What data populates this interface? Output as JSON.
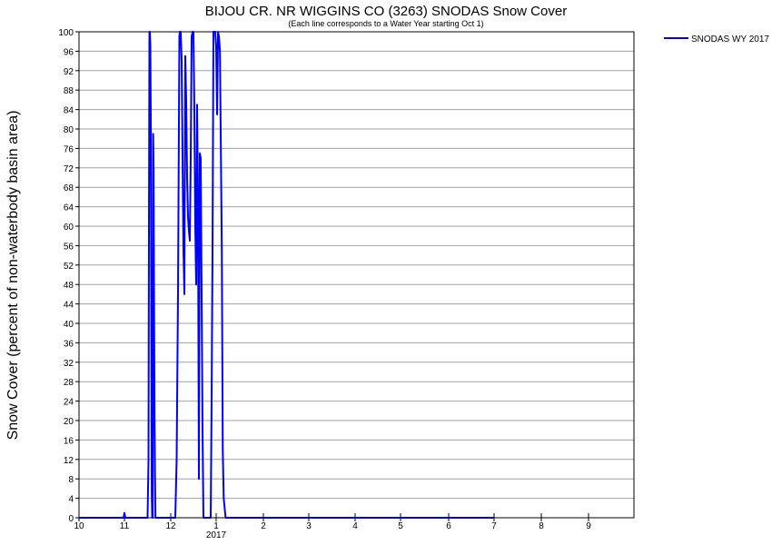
{
  "chart_data": {
    "type": "line",
    "title": "BIJOU CR. NR WIGGINS CO (3263) SNODAS Snow Cover",
    "subtitle": "(Each line corresponds to a Water Year starting Oct 1)",
    "ylabel": "Snow Cover (percent of non-waterbody basin area)",
    "xlabel": "",
    "x_tick_labels": [
      "10",
      "11",
      "12",
      "1",
      "2",
      "3",
      "4",
      "5",
      "6",
      "7",
      "8",
      "9"
    ],
    "x_year_label": "2017",
    "y_tick_labels": [
      "0",
      "4",
      "8",
      "12",
      "16",
      "20",
      "24",
      "28",
      "32",
      "36",
      "40",
      "44",
      "48",
      "52",
      "56",
      "60",
      "64",
      "68",
      "72",
      "76",
      "80",
      "84",
      "88",
      "92",
      "96",
      "100"
    ],
    "ylim": [
      0,
      100
    ],
    "xlim_months": [
      0,
      12
    ],
    "grid": true,
    "legend_position": "top-right",
    "series": [
      {
        "name": "SNODAS WY 2017",
        "color": "#0000ff",
        "x_months_from_oct1": [
          0,
          0.98,
          1.0,
          1.02,
          1.5,
          1.52,
          1.53,
          1.54,
          1.55,
          1.56,
          1.57,
          1.58,
          1.59,
          1.6,
          1.61,
          1.62,
          1.63,
          1.64,
          1.65,
          1.66,
          1.67,
          1.68,
          1.69,
          1.7,
          1.72,
          1.74,
          1.76,
          2.1,
          2.13,
          2.16,
          2.19,
          2.2,
          2.22,
          2.24,
          2.26,
          2.28,
          2.3,
          2.32,
          2.34,
          2.36,
          2.38,
          2.4,
          2.42,
          2.44,
          2.46,
          2.48,
          2.5,
          2.52,
          2.54,
          2.56,
          2.58,
          2.6,
          2.62,
          2.64,
          2.66,
          2.68,
          2.7,
          2.72,
          2.74,
          2.76,
          2.78,
          2.8,
          2.82,
          2.84,
          2.86,
          2.88,
          2.9,
          2.92,
          2.94,
          2.96,
          2.98,
          3.0,
          3.02,
          3.04,
          3.06,
          3.08,
          3.12,
          3.14,
          3.16,
          3.18,
          3.2,
          3.22,
          3.24,
          3.26,
          3.28,
          3.32,
          3.34,
          3.36,
          3.38,
          3.4,
          3.42,
          3.44,
          3.46,
          3.48,
          3.5,
          3.52,
          3.54,
          3.56,
          3.58,
          3.6,
          3.62,
          3.64,
          3.66,
          3.68,
          3.7,
          3.72,
          3.74,
          3.76,
          3.78,
          3.8,
          3.84,
          3.9,
          3.96,
          4.0,
          4.02,
          4.04,
          4.06,
          4.08,
          4.1,
          4.12,
          4.14,
          4.16,
          4.2,
          4.24,
          4.3,
          4.32,
          4.34,
          4.36,
          4.38,
          4.4,
          4.44,
          4.5,
          4.8,
          4.9,
          5.0,
          5.02,
          5.04,
          5.06,
          5.08,
          5.1,
          5.12,
          5.14,
          5.16,
          5.2,
          5.4,
          5.7,
          5.74,
          5.76,
          5.78,
          5.8,
          5.82,
          5.84,
          5.86,
          5.88,
          5.9,
          5.92,
          5.94,
          5.96,
          5.98,
          6.0,
          6.02,
          6.04,
          6.06,
          6.08,
          6.1,
          6.14,
          6.2,
          6.4,
          6.6,
          6.62,
          6.64,
          6.66,
          6.68,
          6.7,
          6.72,
          6.74,
          6.76,
          6.8,
          7.0,
          7.2,
          7.3,
          7.32,
          7.34,
          7.36,
          7.38,
          7.4,
          7.42,
          7.44,
          7.46,
          7.5,
          7.6,
          7.65,
          7.68,
          7.7,
          7.72,
          7.74,
          7.76,
          7.8,
          7.9,
          7.95,
          8.0,
          8.5,
          8.8,
          8.82,
          8.84,
          8.86,
          8.88,
          8.9,
          8.92,
          8.94,
          8.96,
          9.0,
          12.0
        ],
        "values": [
          0,
          0,
          1,
          0,
          0,
          12,
          62,
          100,
          100,
          97,
          80,
          40,
          5,
          0,
          0,
          79,
          72,
          44,
          21,
          9,
          0,
          0,
          0,
          0,
          0,
          0,
          0,
          0,
          12,
          46,
          99,
          100,
          100,
          94,
          74,
          55,
          46,
          95,
          86,
          70,
          62,
          59,
          57,
          74,
          99,
          100,
          100,
          84,
          60,
          48,
          85,
          65,
          8,
          75,
          74,
          46,
          18,
          0,
          0,
          0,
          0,
          0,
          0,
          0,
          0,
          0,
          24,
          55,
          100,
          100,
          100,
          97,
          83,
          100,
          99,
          96,
          55,
          14,
          4,
          2,
          0,
          0,
          0,
          0,
          0,
          0,
          0,
          0,
          0,
          0,
          0,
          0,
          0,
          0,
          0,
          0,
          0,
          0,
          0,
          0,
          0,
          0,
          0,
          0,
          0,
          0,
          0,
          0,
          0,
          0,
          0,
          0,
          0,
          0,
          0,
          0,
          0,
          0,
          0,
          0,
          0,
          0,
          0,
          0,
          0,
          0,
          0,
          0,
          0,
          0,
          0,
          0,
          0,
          0,
          0,
          0,
          0,
          0,
          0,
          0,
          0,
          0,
          0,
          0,
          0,
          0,
          0,
          0,
          0,
          0,
          0,
          0,
          0,
          0,
          0,
          0,
          0,
          0,
          0,
          0,
          0,
          0,
          0,
          0,
          0,
          0,
          0,
          0,
          0,
          0,
          0,
          0,
          0,
          0,
          0,
          0,
          0,
          0,
          0,
          0,
          0,
          0,
          0,
          0,
          0,
          0,
          0,
          0,
          0,
          0,
          0,
          0,
          0,
          0,
          0,
          0,
          0,
          0,
          0,
          0,
          0,
          0,
          0,
          0,
          0,
          0,
          0,
          0,
          0,
          0,
          0,
          0
        ]
      }
    ]
  }
}
